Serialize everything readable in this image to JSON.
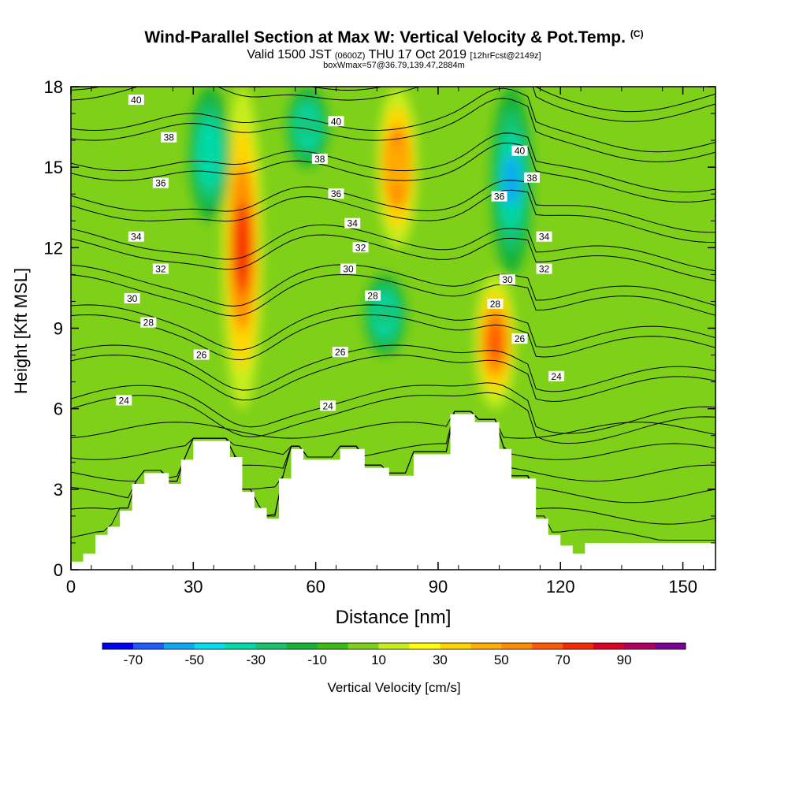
{
  "title": {
    "main": "Wind-Parallel Section at Max W: Vertical Velocity & Pot.Temp.",
    "main_unit": "(C)",
    "valid_prefix": "Valid 1500 JST",
    "valid_utc": "(0600Z)",
    "valid_date": "THU 17 Oct 2019",
    "forecast": "[12hrFcst@2149z]",
    "box_info": "boxWmax=57@36.79,139.47,2884m"
  },
  "colorbar": {
    "label": "Vertical Velocity [cm/s]",
    "ticks": [
      "-70",
      "-50",
      "-30",
      "-10",
      "10",
      "30",
      "50",
      "70",
      "90"
    ],
    "levels": [
      -80,
      -70,
      -60,
      -50,
      -40,
      -30,
      -20,
      -10,
      0,
      10,
      20,
      30,
      40,
      50,
      60,
      70,
      80,
      90,
      100
    ],
    "colors": [
      "#0000f5",
      "#1f5bff",
      "#0ca8f5",
      "#00dcf0",
      "#00d9a8",
      "#16c46e",
      "#18b236",
      "#3bbd14",
      "#7ed019",
      "#c8ee1e",
      "#ffff0a",
      "#ffd500",
      "#ffae00",
      "#ff8a00",
      "#ff5a00",
      "#f52a00",
      "#dc0028",
      "#b0005e",
      "#7a0096"
    ]
  },
  "chart_data": {
    "type": "heatmap",
    "title": "Wind-Parallel Section at Max W: Vertical Velocity & Pot.Temp.",
    "xlabel": "Distance [nm]",
    "ylabel": "Height [Kft MSL]",
    "xlim": [
      0,
      158
    ],
    "ylim": [
      0,
      18
    ],
    "xticks": [
      0,
      30,
      60,
      90,
      120,
      150
    ],
    "yticks": [
      0,
      3,
      6,
      9,
      12,
      15,
      18
    ],
    "fill_variable": "Vertical Velocity [cm/s]",
    "contour_variable": "Pot.Temp. (C)",
    "contour_levels": [
      24,
      26,
      28,
      30,
      32,
      34,
      36,
      38,
      40
    ],
    "contour_labels": [
      {
        "value": "40",
        "x": 16,
        "y": 17.5
      },
      {
        "value": "38",
        "x": 24,
        "y": 16.1
      },
      {
        "value": "36",
        "x": 22,
        "y": 14.4
      },
      {
        "value": "34",
        "x": 16,
        "y": 12.4
      },
      {
        "value": "32",
        "x": 22,
        "y": 11.2
      },
      {
        "value": "30",
        "x": 15,
        "y": 10.1
      },
      {
        "value": "28",
        "x": 19,
        "y": 9.2
      },
      {
        "value": "26",
        "x": 32,
        "y": 8.0
      },
      {
        "value": "24",
        "x": 13,
        "y": 6.3
      },
      {
        "value": "40",
        "x": 65,
        "y": 16.7
      },
      {
        "value": "38",
        "x": 61,
        "y": 15.3
      },
      {
        "value": "36",
        "x": 65,
        "y": 14.0
      },
      {
        "value": "34",
        "x": 69,
        "y": 12.9
      },
      {
        "value": "32",
        "x": 71,
        "y": 12.0
      },
      {
        "value": "30",
        "x": 68,
        "y": 11.2
      },
      {
        "value": "28",
        "x": 74,
        "y": 10.2
      },
      {
        "value": "26",
        "x": 66,
        "y": 8.1
      },
      {
        "value": "24",
        "x": 63,
        "y": 6.1
      },
      {
        "value": "40",
        "x": 110,
        "y": 15.6
      },
      {
        "value": "38",
        "x": 113,
        "y": 14.6
      },
      {
        "value": "36",
        "x": 105,
        "y": 13.9
      },
      {
        "value": "34",
        "x": 116,
        "y": 12.4
      },
      {
        "value": "32",
        "x": 116,
        "y": 11.2
      },
      {
        "value": "30",
        "x": 107,
        "y": 10.8
      },
      {
        "value": "28",
        "x": 104,
        "y": 9.9
      },
      {
        "value": "26",
        "x": 110,
        "y": 8.6
      },
      {
        "value": "24",
        "x": 119,
        "y": 7.2
      }
    ],
    "updraft_cores": [
      {
        "x": 42,
        "ytop": 18,
        "ybottom": 6,
        "peak": 70
      },
      {
        "x": 104,
        "ytop": 11,
        "ybottom": 6,
        "peak": 60
      },
      {
        "x": 80,
        "ytop": 18,
        "ybottom": 12,
        "peak": 40
      }
    ],
    "downdraft_cores": [
      {
        "x": 34,
        "ytop": 18,
        "ybottom": 13,
        "peak": -40
      },
      {
        "x": 108,
        "ytop": 18,
        "ybottom": 11,
        "peak": -60
      },
      {
        "x": 77,
        "ytop": 11,
        "ybottom": 8,
        "peak": -30
      },
      {
        "x": 58,
        "ytop": 18,
        "ybottom": 15,
        "peak": -30
      }
    ],
    "terrain": {
      "x": [
        0,
        3,
        3,
        6,
        6,
        9,
        9,
        12,
        12,
        15,
        15,
        18,
        18,
        24,
        24,
        27,
        27,
        30,
        30,
        39,
        39,
        42,
        42,
        45,
        45,
        48,
        48,
        51,
        51,
        54,
        54,
        57,
        57,
        66,
        66,
        72,
        72,
        78,
        78,
        84,
        84,
        93,
        93,
        99,
        99,
        105,
        105,
        108,
        108,
        114,
        114,
        117,
        117,
        120,
        120,
        123,
        123,
        126,
        126,
        135,
        135,
        138,
        138,
        158
      ],
      "y": [
        0.3,
        0.3,
        0.6,
        0.6,
        1.3,
        1.3,
        1.6,
        1.6,
        2.2,
        2.2,
        3.2,
        3.2,
        3.6,
        3.6,
        3.2,
        3.2,
        4.1,
        4.1,
        4.8,
        4.8,
        4.2,
        4.2,
        2.9,
        2.9,
        2.3,
        2.3,
        1.9,
        1.9,
        3.4,
        3.4,
        4.5,
        4.5,
        4.1,
        4.1,
        4.5,
        4.5,
        3.8,
        3.8,
        3.5,
        3.5,
        4.3,
        4.3,
        5.8,
        5.8,
        5.5,
        5.5,
        4.5,
        4.5,
        3.4,
        3.4,
        1.9,
        1.9,
        1.3,
        1.3,
        0.9,
        0.9,
        0.6,
        0.6,
        1.0,
        1.0,
        1.0,
        1.0,
        1.0,
        1.0
      ]
    }
  }
}
